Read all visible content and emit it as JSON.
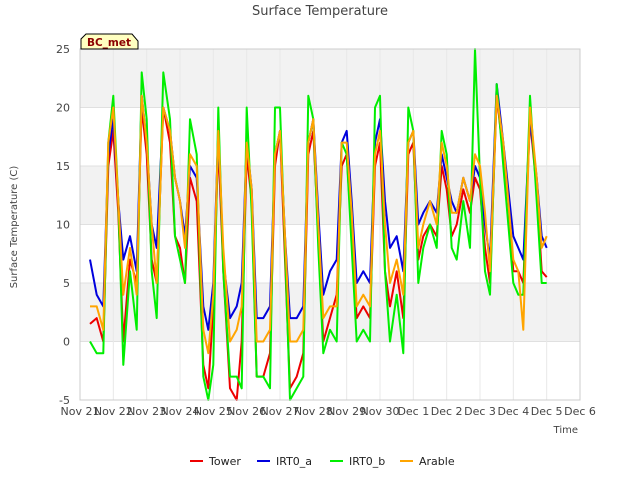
{
  "chart_data": {
    "type": "line",
    "title": "Surface Temperature",
    "xlabel": "Time",
    "ylabel": "Surface Temperature (C)",
    "badge": "BC_met",
    "ylim": [
      -5,
      25
    ],
    "yticks": [
      -5,
      0,
      5,
      10,
      15,
      20,
      25
    ],
    "xlim": [
      21,
      36
    ],
    "xticks": [
      {
        "v": 21,
        "label": "Nov 21"
      },
      {
        "v": 22,
        "label": "Nov 22"
      },
      {
        "v": 23,
        "label": "Nov 23"
      },
      {
        "v": 24,
        "label": "Nov 24"
      },
      {
        "v": 25,
        "label": "Nov 25"
      },
      {
        "v": 26,
        "label": "Nov 26"
      },
      {
        "v": 27,
        "label": "Nov 27"
      },
      {
        "v": 28,
        "label": "Nov 28"
      },
      {
        "v": 29,
        "label": "Nov 29"
      },
      {
        "v": 30,
        "label": "Nov 30"
      },
      {
        "v": 31,
        "label": "Dec 1"
      },
      {
        "v": 32,
        "label": "Dec 2"
      },
      {
        "v": 33,
        "label": "Dec 3"
      },
      {
        "v": 34,
        "label": "Dec 4"
      },
      {
        "v": 35,
        "label": "Dec 5"
      },
      {
        "v": 36,
        "label": "Dec 6"
      }
    ],
    "grid": true,
    "legend_position": "bottom",
    "series": [
      {
        "name": "Tower",
        "color": "#ee0000",
        "x": [
          21.3,
          21.5,
          21.7,
          21.85,
          22.0,
          22.15,
          22.3,
          22.5,
          22.7,
          22.85,
          23.0,
          23.15,
          23.3,
          23.5,
          23.7,
          23.85,
          24.0,
          24.15,
          24.3,
          24.5,
          24.7,
          24.85,
          25.0,
          25.15,
          25.3,
          25.5,
          25.7,
          25.85,
          26.0,
          26.15,
          26.3,
          26.5,
          26.7,
          26.85,
          27.0,
          27.15,
          27.3,
          27.5,
          27.7,
          27.85,
          28.0,
          28.15,
          28.3,
          28.5,
          28.7,
          28.85,
          29.0,
          29.15,
          29.3,
          29.5,
          29.7,
          29.85,
          30.0,
          30.15,
          30.3,
          30.5,
          30.7,
          30.85,
          31.0,
          31.15,
          31.3,
          31.5,
          31.7,
          31.85,
          32.0,
          32.15,
          32.3,
          32.5,
          32.7,
          32.85,
          33.0,
          33.15,
          33.3,
          33.5,
          33.7,
          33.85,
          34.0,
          34.15,
          34.3,
          34.5,
          34.7,
          34.85,
          35.0
        ],
        "y": [
          1.5,
          2,
          0,
          15,
          18,
          11,
          0,
          7,
          5,
          20,
          16,
          7,
          5,
          20,
          17,
          9,
          8,
          5,
          14,
          12,
          -2,
          -4,
          3,
          17,
          6,
          -4,
          -5,
          0,
          16,
          12,
          -3,
          -3,
          -1,
          15,
          18,
          7,
          -4,
          -3,
          -1,
          16,
          18,
          9,
          0,
          2,
          4,
          15,
          16,
          9,
          2,
          3,
          2,
          15,
          17,
          6,
          3,
          6,
          2,
          16,
          17,
          7,
          9,
          10,
          9,
          15,
          13,
          9,
          10,
          13,
          11,
          14,
          13,
          8,
          5,
          21,
          16,
          12,
          6,
          6,
          5,
          19,
          13,
          6,
          5.5
        ]
      },
      {
        "name": "IRT0_a",
        "color": "#0000dd",
        "x": [
          21.3,
          21.5,
          21.7,
          21.85,
          22.0,
          22.15,
          22.3,
          22.5,
          22.7,
          22.85,
          23.0,
          23.15,
          23.3,
          23.5,
          23.7,
          23.85,
          24.0,
          24.15,
          24.3,
          24.5,
          24.7,
          24.85,
          25.0,
          25.15,
          25.3,
          25.5,
          25.7,
          25.85,
          26.0,
          26.15,
          26.3,
          26.5,
          26.7,
          26.85,
          27.0,
          27.15,
          27.3,
          27.5,
          27.7,
          27.85,
          28.0,
          28.15,
          28.3,
          28.5,
          28.7,
          28.85,
          29.0,
          29.15,
          29.3,
          29.5,
          29.7,
          29.85,
          30.0,
          30.15,
          30.3,
          30.5,
          30.7,
          30.85,
          31.0,
          31.15,
          31.3,
          31.5,
          31.7,
          31.85,
          32.0,
          32.15,
          32.3,
          32.5,
          32.7,
          32.85,
          33.0,
          33.15,
          33.3,
          33.5,
          33.7,
          33.85,
          34.0,
          34.15,
          34.3,
          34.5,
          34.7,
          34.85,
          35.0
        ],
        "y": [
          7,
          4,
          3,
          16,
          19,
          12,
          7,
          9,
          6,
          21,
          17,
          10,
          8,
          20,
          18,
          14,
          12,
          9,
          15,
          14,
          3,
          1,
          5,
          18,
          7,
          2,
          3,
          5,
          17,
          13,
          2,
          2,
          3,
          16,
          18,
          9,
          2,
          2,
          3,
          17,
          19,
          11,
          4,
          6,
          7,
          17,
          18,
          12,
          5,
          6,
          5,
          17,
          19,
          12,
          8,
          9,
          6,
          17,
          18,
          10,
          11,
          12,
          11,
          16,
          14,
          12,
          11,
          14,
          12,
          15,
          14,
          10,
          7,
          22,
          17,
          13,
          9,
          8,
          7,
          19,
          14,
          9,
          8
        ]
      },
      {
        "name": "IRT0_b",
        "color": "#00ee00",
        "x": [
          21.3,
          21.5,
          21.7,
          21.85,
          22.0,
          22.15,
          22.3,
          22.5,
          22.7,
          22.85,
          23.0,
          23.15,
          23.3,
          23.5,
          23.7,
          23.85,
          24.0,
          24.15,
          24.3,
          24.5,
          24.7,
          24.85,
          25.0,
          25.15,
          25.3,
          25.5,
          25.7,
          25.85,
          26.0,
          26.15,
          26.3,
          26.5,
          26.7,
          26.85,
          27.0,
          27.15,
          27.3,
          27.5,
          27.7,
          27.85,
          28.0,
          28.15,
          28.3,
          28.5,
          28.7,
          28.85,
          29.0,
          29.15,
          29.3,
          29.5,
          29.7,
          29.85,
          30.0,
          30.15,
          30.3,
          30.5,
          30.7,
          30.85,
          31.0,
          31.15,
          31.3,
          31.5,
          31.7,
          31.85,
          32.0,
          32.15,
          32.3,
          32.5,
          32.7,
          32.85,
          33.0,
          33.15,
          33.3,
          33.5,
          33.7,
          33.85,
          34.0,
          34.15,
          34.3,
          34.5,
          34.7,
          34.85,
          35.0
        ],
        "y": [
          0,
          -1,
          -1,
          17,
          21,
          12,
          -2,
          6,
          1,
          23,
          19,
          6,
          2,
          23,
          19,
          9,
          7,
          5,
          19,
          16,
          -3,
          -5,
          -2,
          20,
          6,
          -3,
          -3,
          -4,
          20,
          11,
          -3,
          -3,
          -4,
          20,
          20,
          8,
          -5,
          -4,
          -3,
          21,
          19,
          8,
          -1,
          1,
          0,
          17,
          16,
          8,
          0,
          1,
          0,
          20,
          21,
          6,
          0,
          4,
          -1,
          20,
          18,
          5,
          8,
          10,
          8,
          18,
          16,
          8,
          7,
          12,
          8,
          25,
          14,
          6,
          4,
          22,
          15,
          10,
          5,
          4,
          4,
          21,
          12,
          5,
          5
        ]
      },
      {
        "name": "Arable",
        "color": "#ffa500",
        "x": [
          21.3,
          21.5,
          21.7,
          21.85,
          22.0,
          22.15,
          22.3,
          22.5,
          22.7,
          22.85,
          23.0,
          23.15,
          23.3,
          23.5,
          23.7,
          23.85,
          24.0,
          24.15,
          24.3,
          24.5,
          24.7,
          24.85,
          25.0,
          25.15,
          25.3,
          25.5,
          25.7,
          25.85,
          26.0,
          26.15,
          26.3,
          26.5,
          26.7,
          26.85,
          27.0,
          27.15,
          27.3,
          27.5,
          27.7,
          27.85,
          28.0,
          28.15,
          28.3,
          28.5,
          28.7,
          28.85,
          29.0,
          29.15,
          29.3,
          29.5,
          29.7,
          29.85,
          30.0,
          30.15,
          30.3,
          30.5,
          30.7,
          30.85,
          31.0,
          31.15,
          31.3,
          31.5,
          31.7,
          31.85,
          32.0,
          32.15,
          32.3,
          32.5,
          32.7,
          32.85,
          33.0,
          33.15,
          33.3,
          33.5,
          33.7,
          33.85,
          34.0,
          34.15,
          34.3,
          34.5,
          34.7,
          34.85,
          35.0
        ],
        "y": [
          3,
          3,
          1,
          17,
          20,
          12,
          4,
          8,
          4,
          21,
          17,
          10,
          5,
          20,
          18,
          14,
          12,
          8,
          16,
          15,
          1,
          -1,
          4,
          18,
          8,
          0,
          1,
          3,
          17,
          13,
          0,
          0,
          1,
          16,
          18,
          9,
          0,
          0,
          1,
          17,
          19,
          10,
          2,
          3,
          3,
          17,
          17,
          11,
          3,
          4,
          3,
          16,
          18,
          10,
          5,
          7,
          4,
          17,
          18,
          8,
          10,
          12,
          10,
          17,
          15,
          11,
          11,
          14,
          12,
          16,
          15,
          11,
          6,
          21,
          17,
          12,
          7,
          6,
          1,
          20,
          14,
          8,
          9
        ]
      }
    ]
  }
}
